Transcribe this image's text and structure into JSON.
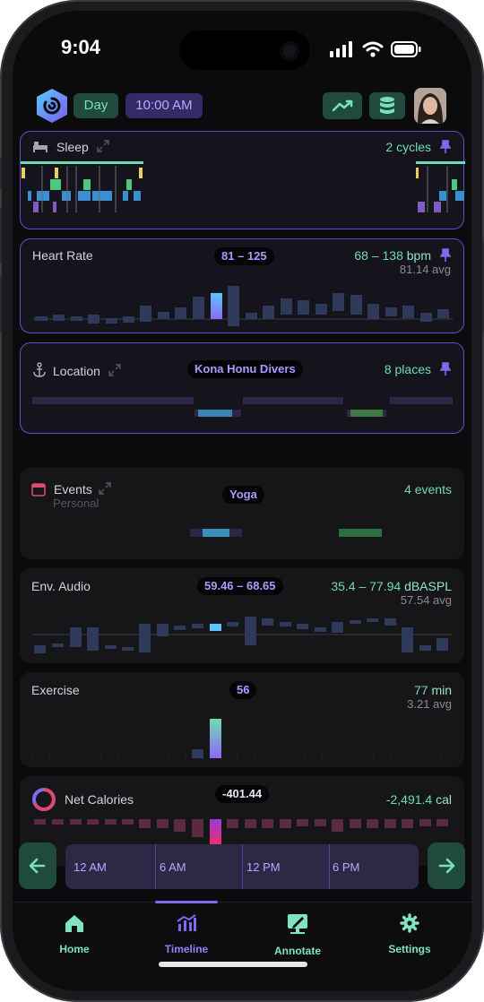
{
  "status_bar": {
    "time": "9:04"
  },
  "header": {
    "view_mode": "Day",
    "current_time": "10:00 AM",
    "icons": [
      "app-logo-icon",
      "trend-icon",
      "database-icon",
      "avatar"
    ]
  },
  "cards": {
    "sleep": {
      "title": "Sleep",
      "right_value": "2 cycles",
      "icons": [
        "bed-icon",
        "expand-icon",
        "pin-icon"
      ]
    },
    "heart_rate": {
      "title": "Heart Rate",
      "badge": "81 – 125",
      "range": "68 – 138",
      "unit": "bpm",
      "avg": "81.14 avg"
    },
    "location": {
      "title": "Location",
      "badge": "Kona Honu Divers",
      "right_value": "8 places"
    },
    "events": {
      "title": "Events",
      "subtitle": "Personal",
      "badge": "Yoga",
      "right_value": "4 events"
    },
    "env_audio": {
      "title": "Env. Audio",
      "badge": "59.46 – 68.65",
      "range": "35.4 – 77.94",
      "unit": "dBASPL",
      "avg": "57.54 avg"
    },
    "exercise": {
      "title": "Exercise",
      "badge": "56",
      "range": "77",
      "unit": "min",
      "avg": "3.21 avg"
    },
    "net_calories": {
      "title": "Net Calories",
      "badge": "-401.44",
      "range": "-2,491.4",
      "unit": "cal"
    }
  },
  "scrubber": {
    "labels": [
      "12 AM",
      "6 AM",
      "12 PM",
      "6 PM"
    ]
  },
  "tabs": [
    {
      "label": "Home",
      "icon": "home-icon"
    },
    {
      "label": "Timeline",
      "icon": "timeline-chart-icon"
    },
    {
      "label": "Annotate",
      "icon": "annotate-icon"
    },
    {
      "label": "Settings",
      "icon": "gear-icon"
    }
  ],
  "colors": {
    "accent_green": "#6fdcb2",
    "accent_purple": "#7c6cf0",
    "card_bg": "#161619",
    "active_border": "#5f4fc8"
  }
}
